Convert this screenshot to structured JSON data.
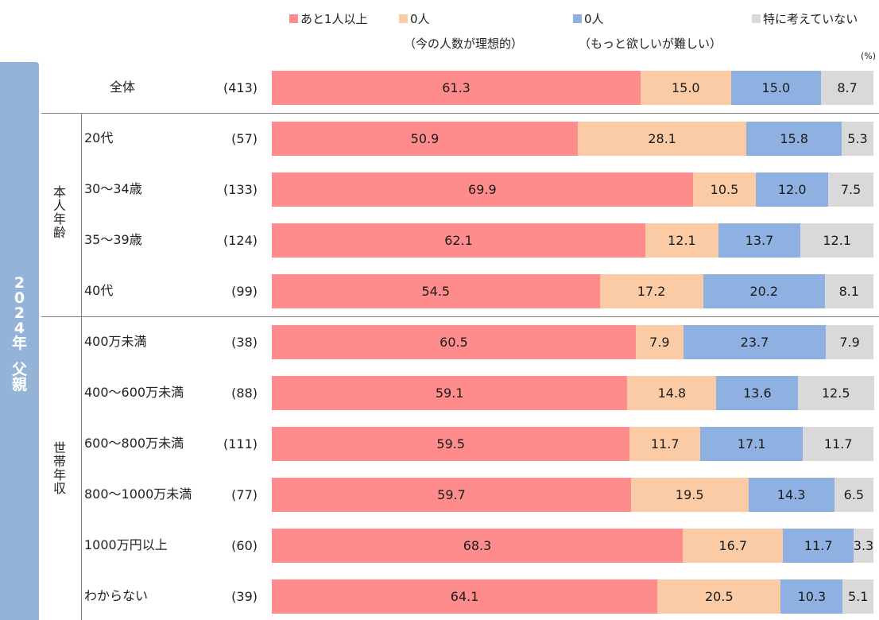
{
  "chart_data": {
    "type": "bar",
    "orientation": "horizontal",
    "stacked": true,
    "unit_label": "(%)",
    "xlim": [
      0,
      100
    ],
    "panel_title": "2024年 父親",
    "series": [
      {
        "name": "あと1人以上",
        "sub": "",
        "color": "#ff8c8c"
      },
      {
        "name": "0人",
        "sub": "（今の人数が理想的）",
        "color": "#fbcba5"
      },
      {
        "name": "0人",
        "sub": "（もっと欲しいが難しい）",
        "color": "#8eb1e1"
      },
      {
        "name": "特に考えていない",
        "sub": "",
        "color": "#d9d9d9"
      }
    ],
    "groups": [
      {
        "name": "",
        "rows": [
          0
        ]
      },
      {
        "name": "本人年齢",
        "rows": [
          1,
          2,
          3,
          4
        ]
      },
      {
        "name": "世帯年収",
        "rows": [
          5,
          6,
          7,
          8,
          9,
          10
        ]
      }
    ],
    "rows": [
      {
        "label": "全体",
        "n": "(413)",
        "values": [
          61.3,
          15.0,
          15.0,
          8.7
        ]
      },
      {
        "label": "20代",
        "n": "(57)",
        "values": [
          50.9,
          28.1,
          15.8,
          5.3
        ]
      },
      {
        "label": "30～34歳",
        "n": "(133)",
        "values": [
          69.9,
          10.5,
          12.0,
          7.5
        ]
      },
      {
        "label": "35～39歳",
        "n": "(124)",
        "values": [
          62.1,
          12.1,
          13.7,
          12.1
        ]
      },
      {
        "label": "40代",
        "n": "(99)",
        "values": [
          54.5,
          17.2,
          20.2,
          8.1
        ]
      },
      {
        "label": "400万未満",
        "n": "(38)",
        "values": [
          60.5,
          7.9,
          23.7,
          7.9
        ]
      },
      {
        "label": "400～600万未満",
        "n": "(88)",
        "values": [
          59.1,
          14.8,
          13.6,
          12.5
        ]
      },
      {
        "label": "600～800万未満",
        "n": "(111)",
        "values": [
          59.5,
          11.7,
          17.1,
          11.7
        ]
      },
      {
        "label": "800～1000万未満",
        "n": "(77)",
        "values": [
          59.7,
          19.5,
          14.3,
          6.5
        ]
      },
      {
        "label": "1000万円以上",
        "n": "(60)",
        "values": [
          68.3,
          16.7,
          11.7,
          3.3
        ]
      },
      {
        "label": "わからない",
        "n": "(39)",
        "values": [
          64.1,
          20.5,
          10.3,
          5.1
        ]
      }
    ]
  }
}
